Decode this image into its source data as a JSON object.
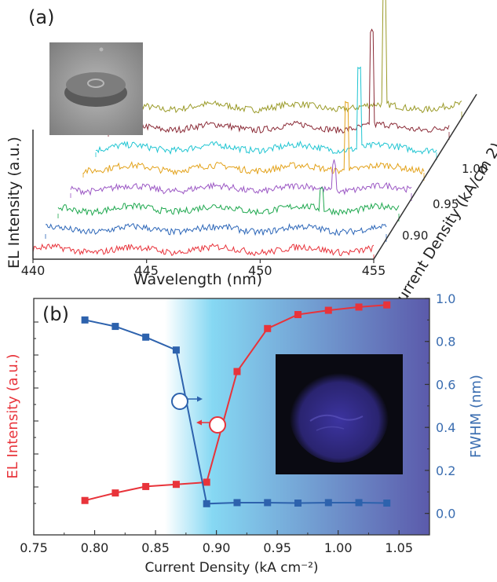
{
  "panels": {
    "a": {
      "label": "(a)"
    },
    "b": {
      "label": "(b)"
    }
  },
  "insets": {
    "a": {
      "subject": "SEM micrograph of microdisk",
      "palette": [
        "#7d7d7d",
        "#b7b7b7",
        "#5a5a5a"
      ]
    },
    "b": {
      "subject": "blue emission image of microdisk",
      "palette": [
        "#0a0a12",
        "#2a2470",
        "#3c34a0"
      ]
    }
  },
  "chart_data": [
    {
      "type": "line",
      "panel": "a",
      "xlabel": "Wavelength (nm)",
      "ylabel": "EL Intensity (a.u.)",
      "zlabel": "Current Density (kA/cm 2)",
      "xlim": [
        440,
        455
      ],
      "x_ticks": [
        "440",
        "445",
        "450",
        "455"
      ],
      "z_ticks": [
        "0.90",
        "0.95",
        "1.00"
      ],
      "series": [
        {
          "current_density": 0.79,
          "color": "#e8323a",
          "peaks": []
        },
        {
          "current_density": 0.82,
          "color": "#2c66b8",
          "peaks": []
        },
        {
          "current_density": 0.84,
          "color": "#1fa84f",
          "peaks": [
            {
              "wavelength": 451.6,
              "height": 0.22
            }
          ]
        },
        {
          "current_density": 0.87,
          "color": "#9b57c4",
          "peaks": [
            {
              "wavelength": 451.6,
              "height": 0.3
            }
          ]
        },
        {
          "current_density": 0.89,
          "color": "#e3a21a",
          "peaks": [
            {
              "wavelength": 451.6,
              "height": 0.75
            }
          ]
        },
        {
          "current_density": 0.92,
          "color": "#20c5d2",
          "peaks": [
            {
              "wavelength": 451.6,
              "height": 0.85
            }
          ]
        },
        {
          "current_density": 0.94,
          "color": "#8a2a36",
          "peaks": [
            {
              "wavelength": 451.6,
              "height": 1.0
            }
          ]
        },
        {
          "current_density": 0.97,
          "color": "#9a9a28",
          "peaks": [
            {
              "wavelength": 451.6,
              "height": 1.1
            }
          ]
        }
      ]
    },
    {
      "type": "line",
      "panel": "b",
      "xlabel": "Current Density (kA cm⁻²)",
      "ylabel_left": "EL Intensity (a.u.)",
      "ylabel_right": "FWHM (nm)",
      "xlim": [
        0.75,
        1.075
      ],
      "ylim_right": [
        -0.1,
        1.0
      ],
      "x_ticks": [
        "0.75",
        "0.80",
        "0.85",
        "0.90",
        "0.95",
        "1.00",
        "1.05"
      ],
      "y_right_ticks": [
        "0.0",
        "0.2",
        "0.4",
        "0.6",
        "0.8",
        "1.0"
      ],
      "x": [
        0.792,
        0.817,
        0.842,
        0.867,
        0.892,
        0.917,
        0.942,
        0.967,
        0.992,
        1.017,
        1.04
      ],
      "series": [
        {
          "name": "EL Intensity",
          "axis": "left",
          "color": "#e8333a",
          "values": [
            0.06,
            0.095,
            0.125,
            0.135,
            0.145,
            0.66,
            0.86,
            0.925,
            0.945,
            0.96,
            0.97
          ]
        },
        {
          "name": "FWHM",
          "axis": "right",
          "color": "#2d62ad",
          "values": [
            0.9,
            0.87,
            0.82,
            0.76,
            0.045,
            0.05,
            0.05,
            0.048,
            0.05,
            0.05,
            0.048
          ]
        }
      ],
      "background_gradient": [
        "#ffffff",
        "#86d8f3",
        "#5b5aab"
      ]
    }
  ]
}
